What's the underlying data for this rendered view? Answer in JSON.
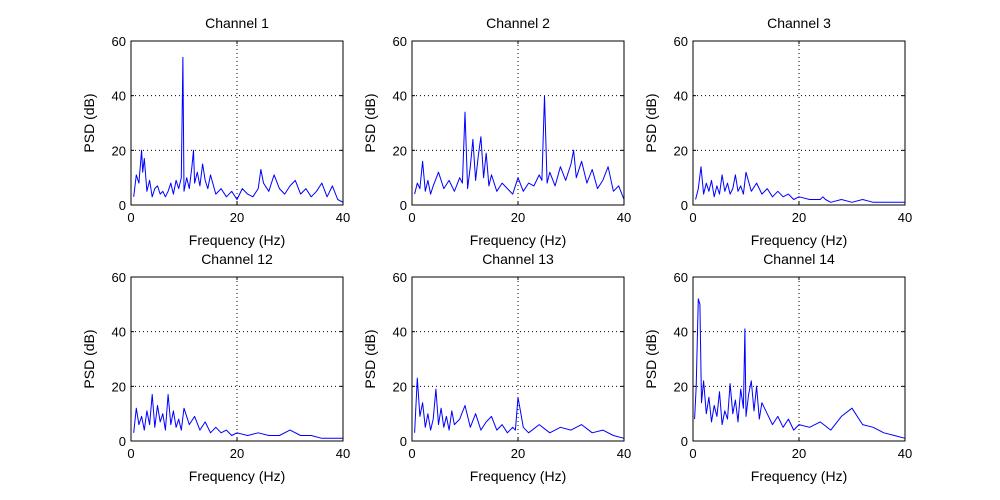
{
  "chart_data": [
    {
      "type": "line",
      "title": "Channel 1",
      "xlabel": "Frequency (Hz)",
      "ylabel": "PSD (dB)",
      "xlim": [
        0,
        40
      ],
      "ylim": [
        0,
        60
      ],
      "xticks": [
        "0",
        "20",
        "40"
      ],
      "yticks": [
        "0",
        "20",
        "40",
        "60"
      ],
      "grid": "dotted",
      "series": [
        {
          "color": "#0000ff",
          "x": [
            0.5,
            1,
            1.5,
            2,
            2.2,
            2.5,
            3,
            3.5,
            4,
            4.5,
            5,
            5.5,
            6,
            6.5,
            7,
            7.5,
            8,
            8.5,
            9,
            9.5,
            9.8,
            10,
            10.5,
            11,
            11.5,
            11.8,
            12,
            12.5,
            13,
            13.5,
            14,
            14.5,
            15,
            16,
            17,
            18,
            19,
            20,
            21,
            22,
            23,
            24,
            24.5,
            25,
            26,
            27,
            28,
            29,
            30,
            31,
            32,
            33,
            34,
            35,
            36,
            37,
            38,
            39,
            40
          ],
          "y": [
            3,
            11,
            8,
            20,
            12,
            17,
            5,
            9,
            3,
            6,
            7,
            4,
            5,
            3,
            5,
            8,
            4,
            9,
            6,
            10,
            54,
            5,
            10,
            6,
            14,
            20,
            8,
            12,
            7,
            15,
            9,
            6,
            11,
            4,
            6,
            3,
            5,
            2,
            6,
            4,
            3,
            6,
            13,
            8,
            5,
            11,
            6,
            4,
            7,
            9,
            4,
            6,
            3,
            5,
            8,
            3,
            7,
            2,
            1
          ]
        }
      ]
    },
    {
      "type": "line",
      "title": "Channel 2",
      "xlabel": "Frequency (Hz)",
      "ylabel": "PSD (dB)",
      "xlim": [
        0,
        40
      ],
      "ylim": [
        0,
        60
      ],
      "xticks": [
        "0",
        "20",
        "40"
      ],
      "yticks": [
        "0",
        "20",
        "40",
        "60"
      ],
      "grid": "dotted",
      "series": [
        {
          "color": "#0000ff",
          "x": [
            0.5,
            1,
            1.5,
            2,
            2.5,
            3,
            3.5,
            4,
            5,
            6,
            7,
            8,
            9,
            9.5,
            10,
            10.5,
            11,
            11.5,
            12,
            12.5,
            13,
            13.5,
            14,
            14.5,
            15,
            16,
            17,
            18,
            19,
            20,
            21,
            22,
            23,
            24,
            24.5,
            25,
            25.5,
            26,
            27,
            28,
            29,
            30,
            30.5,
            31,
            32,
            33,
            34,
            35,
            36,
            37,
            38,
            39,
            40
          ],
          "y": [
            4,
            8,
            6,
            16,
            5,
            9,
            4,
            7,
            12,
            6,
            9,
            5,
            10,
            8,
            34,
            6,
            14,
            24,
            9,
            18,
            25,
            10,
            19,
            7,
            11,
            5,
            8,
            6,
            4,
            10,
            5,
            8,
            7,
            11,
            9,
            40,
            8,
            12,
            7,
            14,
            9,
            15,
            20,
            10,
            16,
            8,
            13,
            6,
            9,
            14,
            5,
            7,
            2
          ]
        }
      ]
    },
    {
      "type": "line",
      "title": "Channel 3",
      "xlabel": "Frequency (Hz)",
      "ylabel": "PSD (dB)",
      "xlim": [
        0,
        40
      ],
      "ylim": [
        0,
        60
      ],
      "xticks": [
        "0",
        "20",
        "40"
      ],
      "yticks": [
        "0",
        "20",
        "40",
        "60"
      ],
      "grid": "dotted",
      "series": [
        {
          "color": "#0000ff",
          "x": [
            0.5,
            1,
            1.5,
            2,
            2.5,
            3,
            3.5,
            4,
            4.5,
            5,
            5.5,
            6,
            6.5,
            7,
            7.5,
            8,
            8.5,
            9,
            9.5,
            10,
            11,
            12,
            13,
            14,
            15,
            16,
            17,
            18,
            19,
            20,
            22,
            24,
            24.5,
            25,
            26,
            28,
            30,
            32,
            34,
            36,
            38,
            40
          ],
          "y": [
            2,
            6,
            14,
            4,
            8,
            5,
            9,
            3,
            7,
            4,
            11,
            5,
            8,
            4,
            6,
            11,
            5,
            7,
            4,
            12,
            5,
            8,
            4,
            6,
            3,
            5,
            3,
            4,
            2,
            3,
            2,
            2,
            3,
            2,
            1,
            2,
            1,
            2,
            1,
            1,
            1,
            1
          ]
        }
      ]
    },
    {
      "type": "line",
      "title": "Channel 12",
      "xlabel": "Frequency (Hz)",
      "ylabel": "PSD (dB)",
      "xlim": [
        0,
        40
      ],
      "ylim": [
        0,
        60
      ],
      "xticks": [
        "0",
        "20",
        "40"
      ],
      "yticks": [
        "0",
        "20",
        "40",
        "60"
      ],
      "grid": "dotted",
      "series": [
        {
          "color": "#0000ff",
          "x": [
            0.5,
            1,
            1.5,
            2,
            2.5,
            3,
            3.5,
            4,
            4.5,
            5,
            5.5,
            6,
            6.5,
            7,
            7.5,
            8,
            8.5,
            9,
            9.5,
            10,
            11,
            12,
            13,
            14,
            15,
            16,
            17,
            18,
            19,
            20,
            22,
            24,
            26,
            28,
            30,
            32,
            34,
            36,
            38,
            40
          ],
          "y": [
            3,
            12,
            6,
            9,
            4,
            11,
            6,
            17,
            5,
            13,
            7,
            10,
            4,
            17,
            6,
            11,
            5,
            8,
            4,
            12,
            6,
            9,
            4,
            7,
            3,
            5,
            3,
            4,
            2,
            3,
            2,
            3,
            2,
            2,
            4,
            2,
            2,
            1,
            1,
            1
          ]
        }
      ]
    },
    {
      "type": "line",
      "title": "Channel 13",
      "xlabel": "Frequency (Hz)",
      "ylabel": "PSD (dB)",
      "xlim": [
        0,
        40
      ],
      "ylim": [
        0,
        60
      ],
      "xticks": [
        "0",
        "20",
        "40"
      ],
      "yticks": [
        "0",
        "20",
        "40",
        "60"
      ],
      "grid": "dotted",
      "series": [
        {
          "color": "#0000ff",
          "x": [
            0.5,
            1,
            1.5,
            2,
            2.5,
            3,
            3.5,
            4,
            4.5,
            5,
            5.5,
            6,
            6.5,
            7,
            7.5,
            8,
            9,
            10,
            11,
            12,
            13,
            14,
            15,
            16,
            17,
            18,
            19,
            19.5,
            20,
            21,
            22,
            24,
            26,
            28,
            30,
            32,
            34,
            36,
            38,
            40
          ],
          "y": [
            3,
            23,
            9,
            14,
            5,
            10,
            4,
            8,
            19,
            6,
            12,
            5,
            9,
            4,
            11,
            6,
            8,
            13,
            5,
            10,
            4,
            7,
            9,
            4,
            6,
            3,
            5,
            4,
            16,
            5,
            3,
            6,
            3,
            5,
            4,
            6,
            3,
            4,
            2,
            1
          ]
        }
      ]
    },
    {
      "type": "line",
      "title": "Channel 14",
      "xlabel": "Frequency (Hz)",
      "ylabel": "PSD (dB)",
      "xlim": [
        0,
        40
      ],
      "ylim": [
        0,
        60
      ],
      "xticks": [
        "0",
        "20",
        "40"
      ],
      "yticks": [
        "0",
        "20",
        "40",
        "60"
      ],
      "grid": "dotted",
      "series": [
        {
          "color": "#0000ff",
          "x": [
            0.3,
            0.6,
            1,
            1.3,
            1.6,
            2,
            2.5,
            3,
            3.5,
            4,
            4.5,
            5,
            5.5,
            6,
            6.5,
            7,
            7.5,
            8,
            8.5,
            9,
            9.5,
            9.8,
            10,
            10.5,
            11,
            11.5,
            12,
            12.5,
            13,
            14,
            15,
            16,
            17,
            18,
            19,
            20,
            22,
            24,
            26,
            28,
            30,
            32,
            34,
            36,
            38,
            40
          ],
          "y": [
            8,
            20,
            52,
            50,
            14,
            22,
            10,
            16,
            7,
            13,
            9,
            18,
            6,
            11,
            8,
            21,
            10,
            15,
            7,
            19,
            12,
            41,
            9,
            17,
            22,
            11,
            20,
            8,
            14,
            10,
            6,
            9,
            5,
            8,
            4,
            6,
            5,
            7,
            4,
            9,
            12,
            6,
            5,
            3,
            2,
            1
          ]
        }
      ]
    }
  ]
}
